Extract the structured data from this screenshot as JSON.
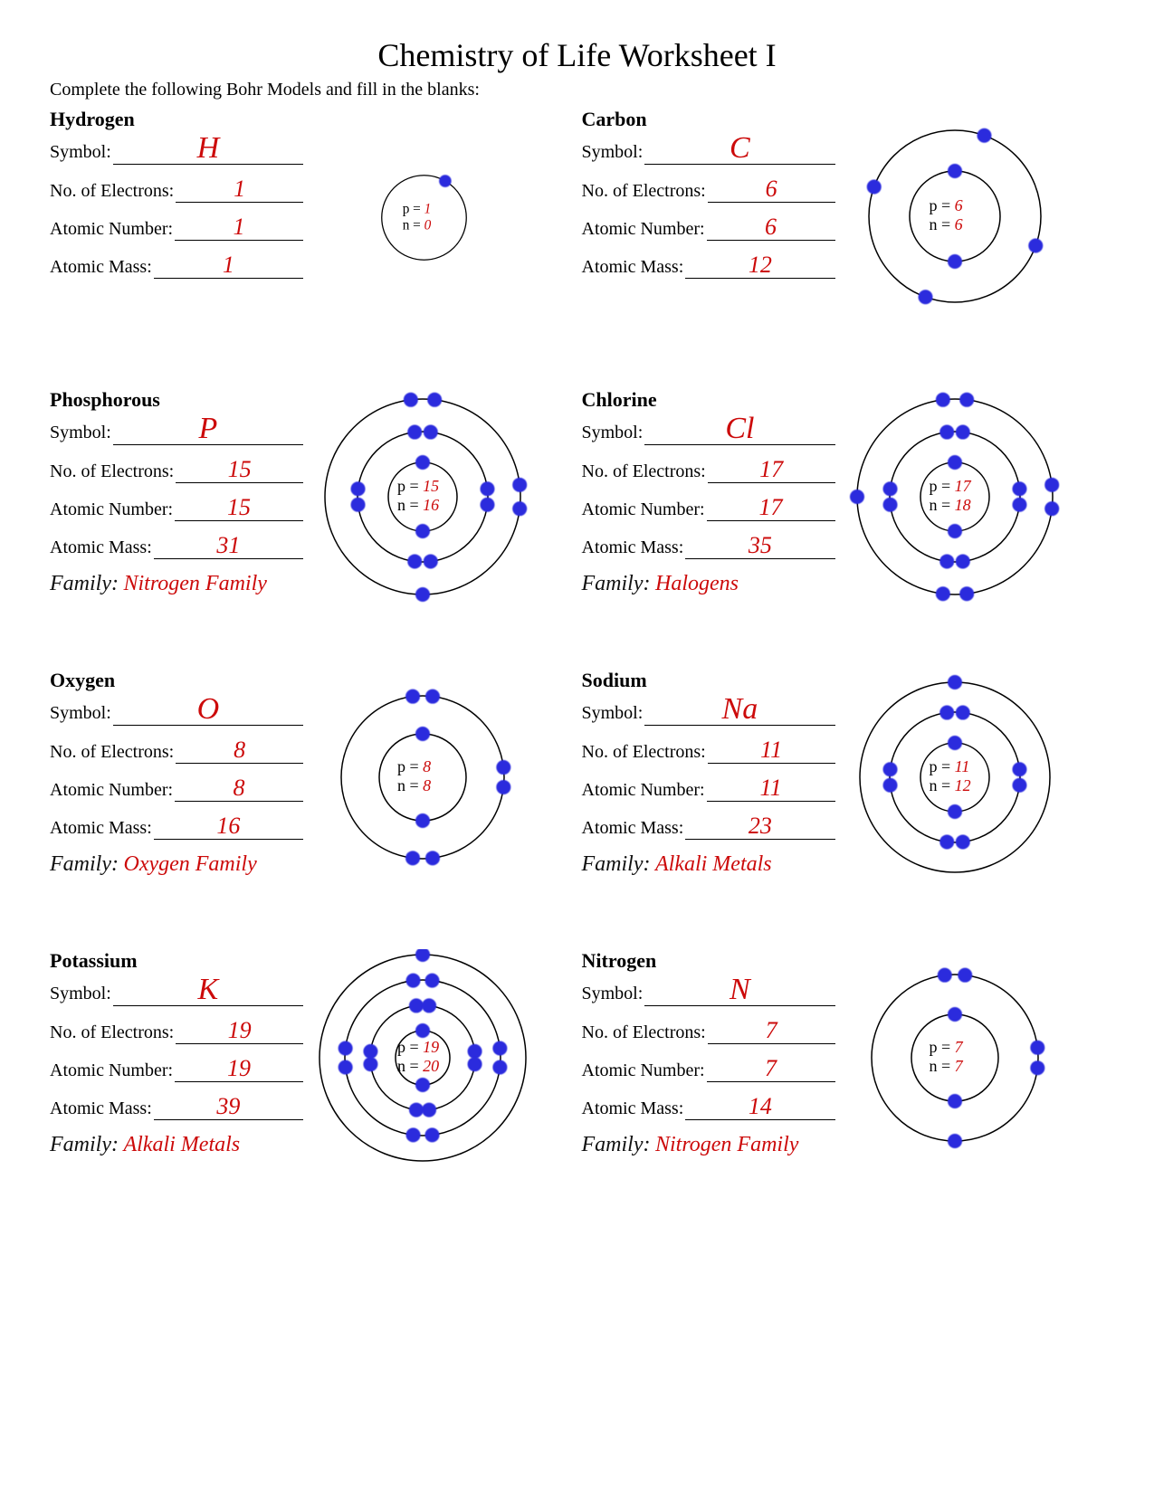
{
  "title": "Chemistry of Life Worksheet I",
  "instructions": "Complete the following Bohr Models and fill in the blanks:",
  "labels": {
    "symbol": "Symbol:",
    "electrons": "No. of Electrons:",
    "atomic_number": "Atomic Number:",
    "atomic_mass": "Atomic Mass:",
    "family": "Family:",
    "p_eq": "p =",
    "n_eq": "n ="
  },
  "style": {
    "handwriting_color": "#cc0a0a",
    "electron_color": "#2b2bdd",
    "ring_color": "#000000",
    "background": "#ffffff",
    "electron_radius": 8
  },
  "elements": [
    {
      "name": "Hydrogen",
      "symbol": "H",
      "electrons": "1",
      "atomic_number": "1",
      "atomic_mass": "1",
      "p": "1",
      "n": "0",
      "family": "",
      "shells": [
        {
          "r": 55,
          "count": 1,
          "offset_deg": -60
        }
      ],
      "nucleus_r": 0,
      "scale": 0.85
    },
    {
      "name": "Carbon",
      "symbol": "C",
      "electrons": "6",
      "atomic_number": "6",
      "atomic_mass": "12",
      "p": "6",
      "n": "6",
      "family": "",
      "shells": [
        {
          "r": 50,
          "count": 2,
          "offset_deg": -90
        },
        {
          "r": 95,
          "count": 4,
          "offset_deg": -70
        }
      ],
      "nucleus_r": 0,
      "scale": 1.0
    },
    {
      "name": "Phosphorous",
      "symbol": "P",
      "electrons": "15",
      "atomic_number": "15",
      "atomic_mass": "31",
      "p": "15",
      "n": "16",
      "family": "Nitrogen Family",
      "shells": [
        {
          "r": 38,
          "count": 2,
          "offset_deg": -90
        },
        {
          "r": 72,
          "count": 8,
          "offset_deg": -80,
          "pair": true
        },
        {
          "r": 108,
          "count": 5,
          "offset_deg": -80,
          "pair": true
        }
      ],
      "nucleus_r": 0,
      "scale": 1.0
    },
    {
      "name": "Chlorine",
      "symbol": "Cl",
      "electrons": "17",
      "atomic_number": "17",
      "atomic_mass": "35",
      "p": "17",
      "n": "18",
      "family": "Halogens",
      "shells": [
        {
          "r": 38,
          "count": 2,
          "offset_deg": -90
        },
        {
          "r": 72,
          "count": 8,
          "offset_deg": -80,
          "pair": true
        },
        {
          "r": 108,
          "count": 7,
          "offset_deg": -75,
          "pair": true
        }
      ],
      "nucleus_r": 0,
      "scale": 1.0
    },
    {
      "name": "Oxygen",
      "symbol": "O",
      "electrons": "8",
      "atomic_number": "8",
      "atomic_mass": "16",
      "p": "8",
      "n": "8",
      "family": "Oxygen Family",
      "shells": [
        {
          "r": 48,
          "count": 2,
          "offset_deg": -90
        },
        {
          "r": 90,
          "count": 6,
          "offset_deg": -75,
          "pair": true
        }
      ],
      "nucleus_r": 0,
      "scale": 1.0
    },
    {
      "name": "Sodium",
      "symbol": "Na",
      "electrons": "11",
      "atomic_number": "11",
      "atomic_mass": "23",
      "p": "11",
      "n": "12",
      "family": "Alkali Metals",
      "shells": [
        {
          "r": 38,
          "count": 2,
          "offset_deg": -90
        },
        {
          "r": 72,
          "count": 8,
          "offset_deg": -80,
          "pair": true
        },
        {
          "r": 105,
          "count": 1,
          "offset_deg": -90
        }
      ],
      "nucleus_r": 0,
      "scale": 1.0
    },
    {
      "name": "Potassium",
      "symbol": "K",
      "electrons": "19",
      "atomic_number": "19",
      "atomic_mass": "39",
      "p": "19",
      "n": "20",
      "family": "Alkali Metals",
      "shells": [
        {
          "r": 30,
          "count": 2,
          "offset_deg": -90
        },
        {
          "r": 58,
          "count": 8,
          "offset_deg": -80,
          "pair": true
        },
        {
          "r": 86,
          "count": 8,
          "offset_deg": -80,
          "pair": true
        },
        {
          "r": 114,
          "count": 1,
          "offset_deg": -90
        }
      ],
      "nucleus_r": 0,
      "scale": 1.0
    },
    {
      "name": "Nitrogen",
      "symbol": "N",
      "electrons": "7",
      "atomic_number": "7",
      "atomic_mass": "14",
      "p": "7",
      "n": "7",
      "family": "Nitrogen Family",
      "shells": [
        {
          "r": 48,
          "count": 2,
          "offset_deg": -90
        },
        {
          "r": 92,
          "count": 5,
          "offset_deg": -70,
          "pair": true
        }
      ],
      "nucleus_r": 0,
      "scale": 1.0
    }
  ]
}
